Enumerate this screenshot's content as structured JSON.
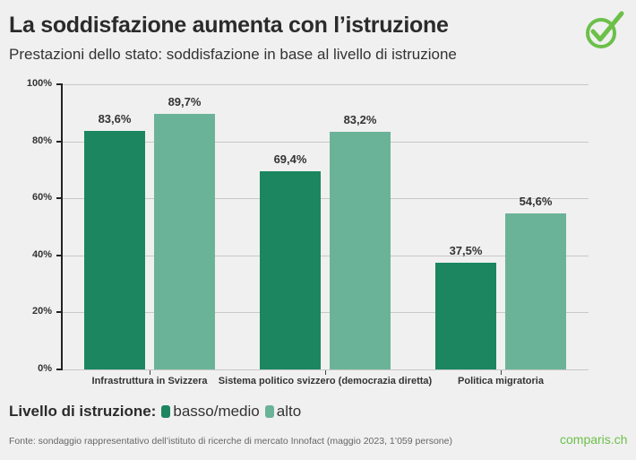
{
  "header": {
    "title": "La soddisfazione aumenta con l’istruzione",
    "subtitle": "Prestazioni dello stato: soddisfazione in base al livello di istruzione"
  },
  "logo": {
    "icon": "checkmark-circle-icon",
    "color": "#6cc04a"
  },
  "legend": {
    "title": "Livello di istruzione:",
    "items": [
      {
        "label": "basso/medio",
        "color": "#1b8660"
      },
      {
        "label": "alto",
        "color": "#6bb398"
      }
    ]
  },
  "footer": {
    "source": "Fonte: sondaggio rappresentativo dell’istituto di ricerche di mercato Innofact (maggio 2023, 1’059 persone)",
    "brand": "comparis.ch"
  },
  "chart_data": {
    "type": "bar",
    "title": "La soddisfazione aumenta con l’istruzione",
    "subtitle": "Prestazioni dello stato: soddisfazione in base al livello di istruzione",
    "xlabel": "",
    "ylabel": "",
    "ylim": [
      0,
      100
    ],
    "yticks": [
      "0%",
      "20%",
      "40%",
      "60%",
      "80%",
      "100%"
    ],
    "grid": true,
    "legend_position": "bottom",
    "categories": [
      "Infrastruttura in Svizzera",
      "Sistema politico svizzero (democrazia diretta)",
      "Politica migratoria"
    ],
    "series": [
      {
        "name": "basso/medio",
        "color": "#1b8660",
        "values": [
          83.6,
          69.4,
          37.5
        ],
        "labels": [
          "83,6%",
          "69,4%",
          "37,5%"
        ]
      },
      {
        "name": "alto",
        "color": "#6bb398",
        "values": [
          89.7,
          83.2,
          54.6
        ],
        "labels": [
          "89,7%",
          "83,2%",
          "54,6%"
        ]
      }
    ]
  }
}
